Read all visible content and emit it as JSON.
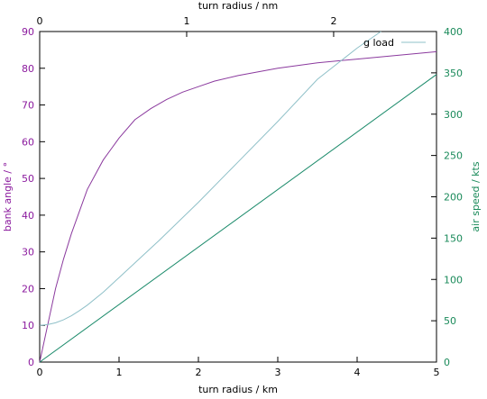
{
  "chart_data": {
    "type": "line",
    "xlabel_bottom": "turn radius / km",
    "xlabel_top": "turn radius / nm",
    "ylabel_left": "bank angle / °",
    "ylabel_right": "air speed / kts",
    "x_bottom_range": [
      0,
      5
    ],
    "x_bottom_ticks": [
      "0",
      "1",
      "2",
      "3",
      "4",
      "5"
    ],
    "x_top_ticks": [
      {
        "value": 0,
        "label": "0"
      },
      {
        "value": 1,
        "label": "1"
      },
      {
        "value": 2,
        "label": "2"
      }
    ],
    "km_per_nm": 1.852,
    "y_left_range": [
      0,
      90
    ],
    "y_left_ticks": [
      "0",
      "10",
      "20",
      "30",
      "40",
      "50",
      "60",
      "70",
      "80",
      "90"
    ],
    "y_right_range": [
      0,
      400
    ],
    "y_right_ticks": [
      "0",
      "50",
      "100",
      "150",
      "200",
      "250",
      "300",
      "350",
      "400"
    ],
    "legend": {
      "position": "top-right",
      "entries": [
        "g load"
      ]
    },
    "grid": false,
    "colors": {
      "left_axis": "#8b1a9e",
      "right_axis": "#1a8a5a",
      "bank_angle_line": "#8b3a9e",
      "air_speed_line": "#1a8a6a",
      "g_load_line": "#8fc0c8",
      "border": "#000000"
    },
    "series": [
      {
        "axis": "left",
        "x": [
          0,
          0.05,
          0.1,
          0.2,
          0.3,
          0.4,
          0.5,
          0.6,
          0.7,
          0.8,
          0.9,
          1.0,
          1.2,
          1.4,
          1.6,
          1.8,
          2.0,
          2.2,
          2.5,
          3.0,
          3.5,
          4.0,
          4.5,
          5.0
        ],
        "y": [
          0,
          5,
          10,
          20,
          28,
          35,
          41,
          47,
          51,
          55,
          58,
          61,
          66,
          69,
          71.5,
          73.5,
          75,
          76.5,
          78,
          80,
          81.5,
          82.5,
          83.5,
          84.5
        ]
      },
      {
        "name": "g load",
        "axis": "left",
        "x": [
          0,
          0.1,
          0.2,
          0.3,
          0.4,
          0.5,
          0.6,
          0.8,
          1.0,
          1.2,
          1.5,
          2.0,
          2.5,
          3.0,
          3.5,
          4.0,
          4.3
        ],
        "y": [
          10,
          10.2,
          10.7,
          11.5,
          12.6,
          14.0,
          15.5,
          19.0,
          23.0,
          27.0,
          33.0,
          43.5,
          54.5,
          65.5,
          77.0,
          85.5,
          90
        ]
      },
      {
        "axis": "right",
        "x": [
          0,
          5
        ],
        "y": [
          0,
          348
        ]
      }
    ]
  }
}
